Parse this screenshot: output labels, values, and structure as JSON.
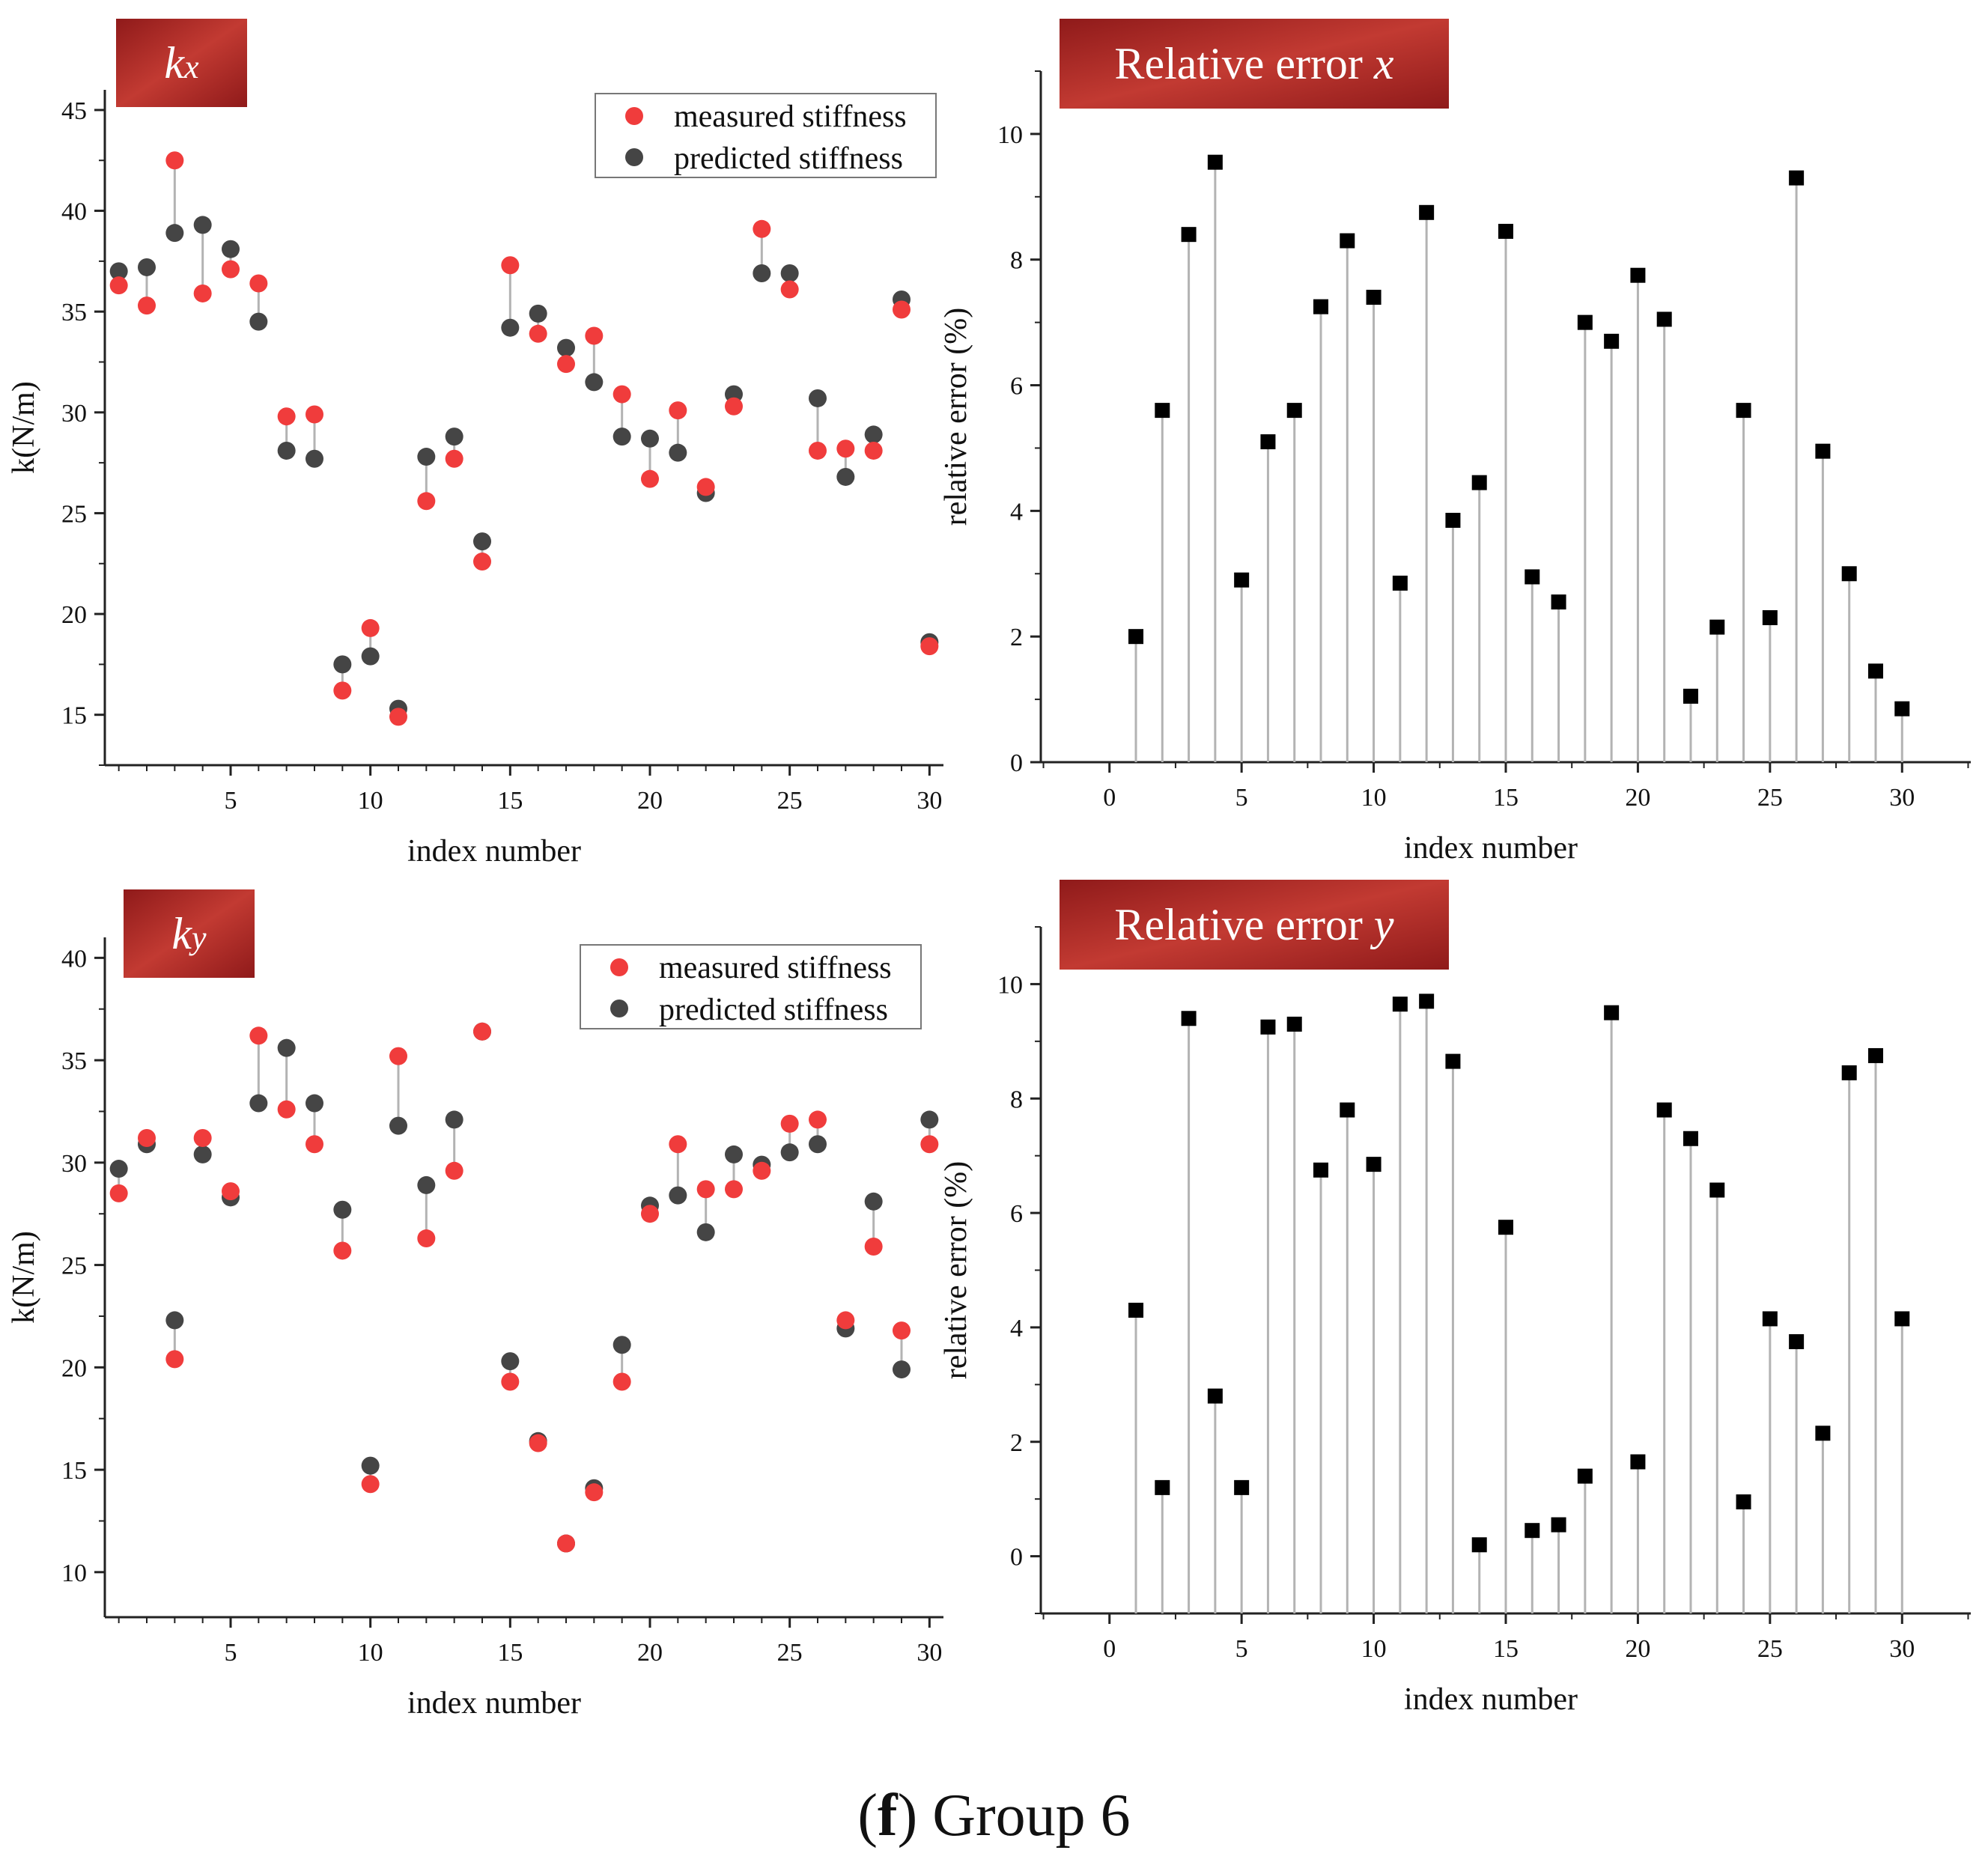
{
  "caption": {
    "letter": "f",
    "text": "Group 6"
  },
  "colors": {
    "measured": "#f03c3c",
    "predicted": "#454545",
    "error_marker": "#000000",
    "stem": "#b3b3b3",
    "badge_dark": "#8f1a1a",
    "badge_light": "#c23a32"
  },
  "chart_data": [
    {
      "id": "kx",
      "type": "scatter",
      "badge": {
        "main": "k",
        "sub": "x"
      },
      "xlabel": "index number",
      "ylabel": "k(N/m)",
      "xlim": [
        0.5,
        30.5
      ],
      "ylim": [
        12.5,
        46
      ],
      "xticks": [
        5,
        10,
        15,
        20,
        25,
        30
      ],
      "yticks": [
        15,
        20,
        25,
        30,
        35,
        40,
        45
      ],
      "legend": {
        "position": "top-right",
        "measured_label": "measured stiffness",
        "predicted_label": "predicted stiffness"
      },
      "x": [
        1,
        2,
        3,
        4,
        5,
        6,
        7,
        8,
        9,
        10,
        11,
        12,
        13,
        14,
        15,
        16,
        17,
        18,
        19,
        20,
        21,
        22,
        23,
        24,
        25,
        26,
        27,
        28,
        29,
        30
      ],
      "series": [
        {
          "name": "measured stiffness",
          "values": [
            36.3,
            35.3,
            42.5,
            35.9,
            37.1,
            36.4,
            29.8,
            29.9,
            16.2,
            19.3,
            14.9,
            25.6,
            27.7,
            22.6,
            37.3,
            33.9,
            32.4,
            33.8,
            30.9,
            26.7,
            30.1,
            26.3,
            30.3,
            39.1,
            36.1,
            28.1,
            28.2,
            28.1,
            35.1,
            18.4
          ]
        },
        {
          "name": "predicted stiffness",
          "values": [
            37.0,
            37.2,
            38.9,
            39.3,
            38.1,
            34.5,
            28.1,
            27.7,
            17.5,
            17.9,
            15.3,
            27.8,
            28.8,
            23.6,
            34.2,
            34.9,
            33.2,
            31.5,
            28.8,
            28.7,
            28.0,
            26.0,
            30.9,
            36.9,
            36.9,
            30.7,
            26.8,
            28.9,
            35.6,
            18.6
          ]
        }
      ]
    },
    {
      "id": "error_x",
      "type": "stem",
      "badge": {
        "main": "Relative error ",
        "sub": "x"
      },
      "xlabel": "index number",
      "ylabel": "relative error (%)",
      "xlim": [
        -2.6,
        32.6
      ],
      "ylim": [
        0,
        11
      ],
      "xticks": [
        0,
        5,
        10,
        15,
        20,
        25,
        30
      ],
      "yticks": [
        0,
        2,
        4,
        6,
        8,
        10
      ],
      "x": [
        1,
        2,
        3,
        4,
        5,
        6,
        7,
        8,
        9,
        10,
        11,
        12,
        13,
        14,
        15,
        16,
        17,
        18,
        19,
        20,
        21,
        22,
        23,
        24,
        25,
        26,
        27,
        28,
        29,
        30
      ],
      "values": [
        2.0,
        5.6,
        8.4,
        9.55,
        2.9,
        5.1,
        5.6,
        7.25,
        8.3,
        7.4,
        2.85,
        8.75,
        3.85,
        4.45,
        8.45,
        2.95,
        2.55,
        7.0,
        6.7,
        7.75,
        7.05,
        1.05,
        2.15,
        5.6,
        2.3,
        9.3,
        4.95,
        3.0,
        1.45,
        0.85
      ]
    },
    {
      "id": "ky",
      "type": "scatter",
      "badge": {
        "main": "k",
        "sub": "y"
      },
      "xlabel": "index number",
      "ylabel": "k(N/m)",
      "xlim": [
        0.5,
        30.5
      ],
      "ylim": [
        7.8,
        41
      ],
      "xticks": [
        5,
        10,
        15,
        20,
        25,
        30
      ],
      "yticks": [
        10,
        15,
        20,
        25,
        30,
        35,
        40
      ],
      "legend": {
        "position": "top-right",
        "measured_label": "measured stiffness",
        "predicted_label": "predicted stiffness"
      },
      "x": [
        1,
        2,
        3,
        4,
        5,
        6,
        7,
        8,
        9,
        10,
        11,
        12,
        13,
        14,
        15,
        16,
        17,
        18,
        19,
        20,
        21,
        22,
        23,
        24,
        25,
        26,
        27,
        28,
        29,
        30
      ],
      "series": [
        {
          "name": "measured stiffness",
          "values": [
            28.5,
            31.2,
            20.4,
            31.2,
            28.6,
            36.2,
            32.6,
            30.9,
            25.7,
            14.3,
            35.2,
            26.3,
            29.6,
            36.4,
            19.3,
            16.3,
            11.4,
            13.9,
            19.3,
            27.5,
            30.9,
            28.7,
            28.7,
            29.6,
            31.9,
            32.1,
            22.3,
            25.9,
            21.8,
            30.9
          ]
        },
        {
          "name": "predicted stiffness",
          "values": [
            29.7,
            30.9,
            22.3,
            30.4,
            28.3,
            32.9,
            35.6,
            32.9,
            27.7,
            15.2,
            31.8,
            28.9,
            32.1,
            36.4,
            20.3,
            16.4,
            11.4,
            14.1,
            21.1,
            27.9,
            28.4,
            26.6,
            30.4,
            29.9,
            30.5,
            30.9,
            21.9,
            28.1,
            19.9,
            32.1
          ]
        }
      ]
    },
    {
      "id": "error_y",
      "type": "stem",
      "badge": {
        "main": "Relative error ",
        "sub": "y"
      },
      "xlabel": "index number",
      "ylabel": "relative error (%)",
      "xlim": [
        -2.6,
        32.6
      ],
      "ylim": [
        -1,
        11
      ],
      "xticks": [
        0,
        5,
        10,
        15,
        20,
        25,
        30
      ],
      "yticks": [
        0,
        2,
        4,
        6,
        8,
        10
      ],
      "x": [
        1,
        2,
        3,
        4,
        5,
        6,
        7,
        8,
        9,
        10,
        11,
        12,
        13,
        14,
        15,
        16,
        17,
        18,
        19,
        20,
        21,
        22,
        23,
        24,
        25,
        26,
        27,
        28,
        29,
        30
      ],
      "values": [
        4.3,
        1.2,
        9.4,
        2.8,
        1.2,
        9.25,
        9.3,
        6.75,
        7.8,
        6.85,
        9.65,
        9.7,
        8.65,
        0.2,
        5.75,
        0.45,
        0.55,
        1.4,
        9.5,
        1.65,
        7.8,
        7.3,
        6.4,
        0.95,
        4.15,
        3.75,
        2.15,
        8.45,
        8.75,
        4.15
      ]
    }
  ]
}
